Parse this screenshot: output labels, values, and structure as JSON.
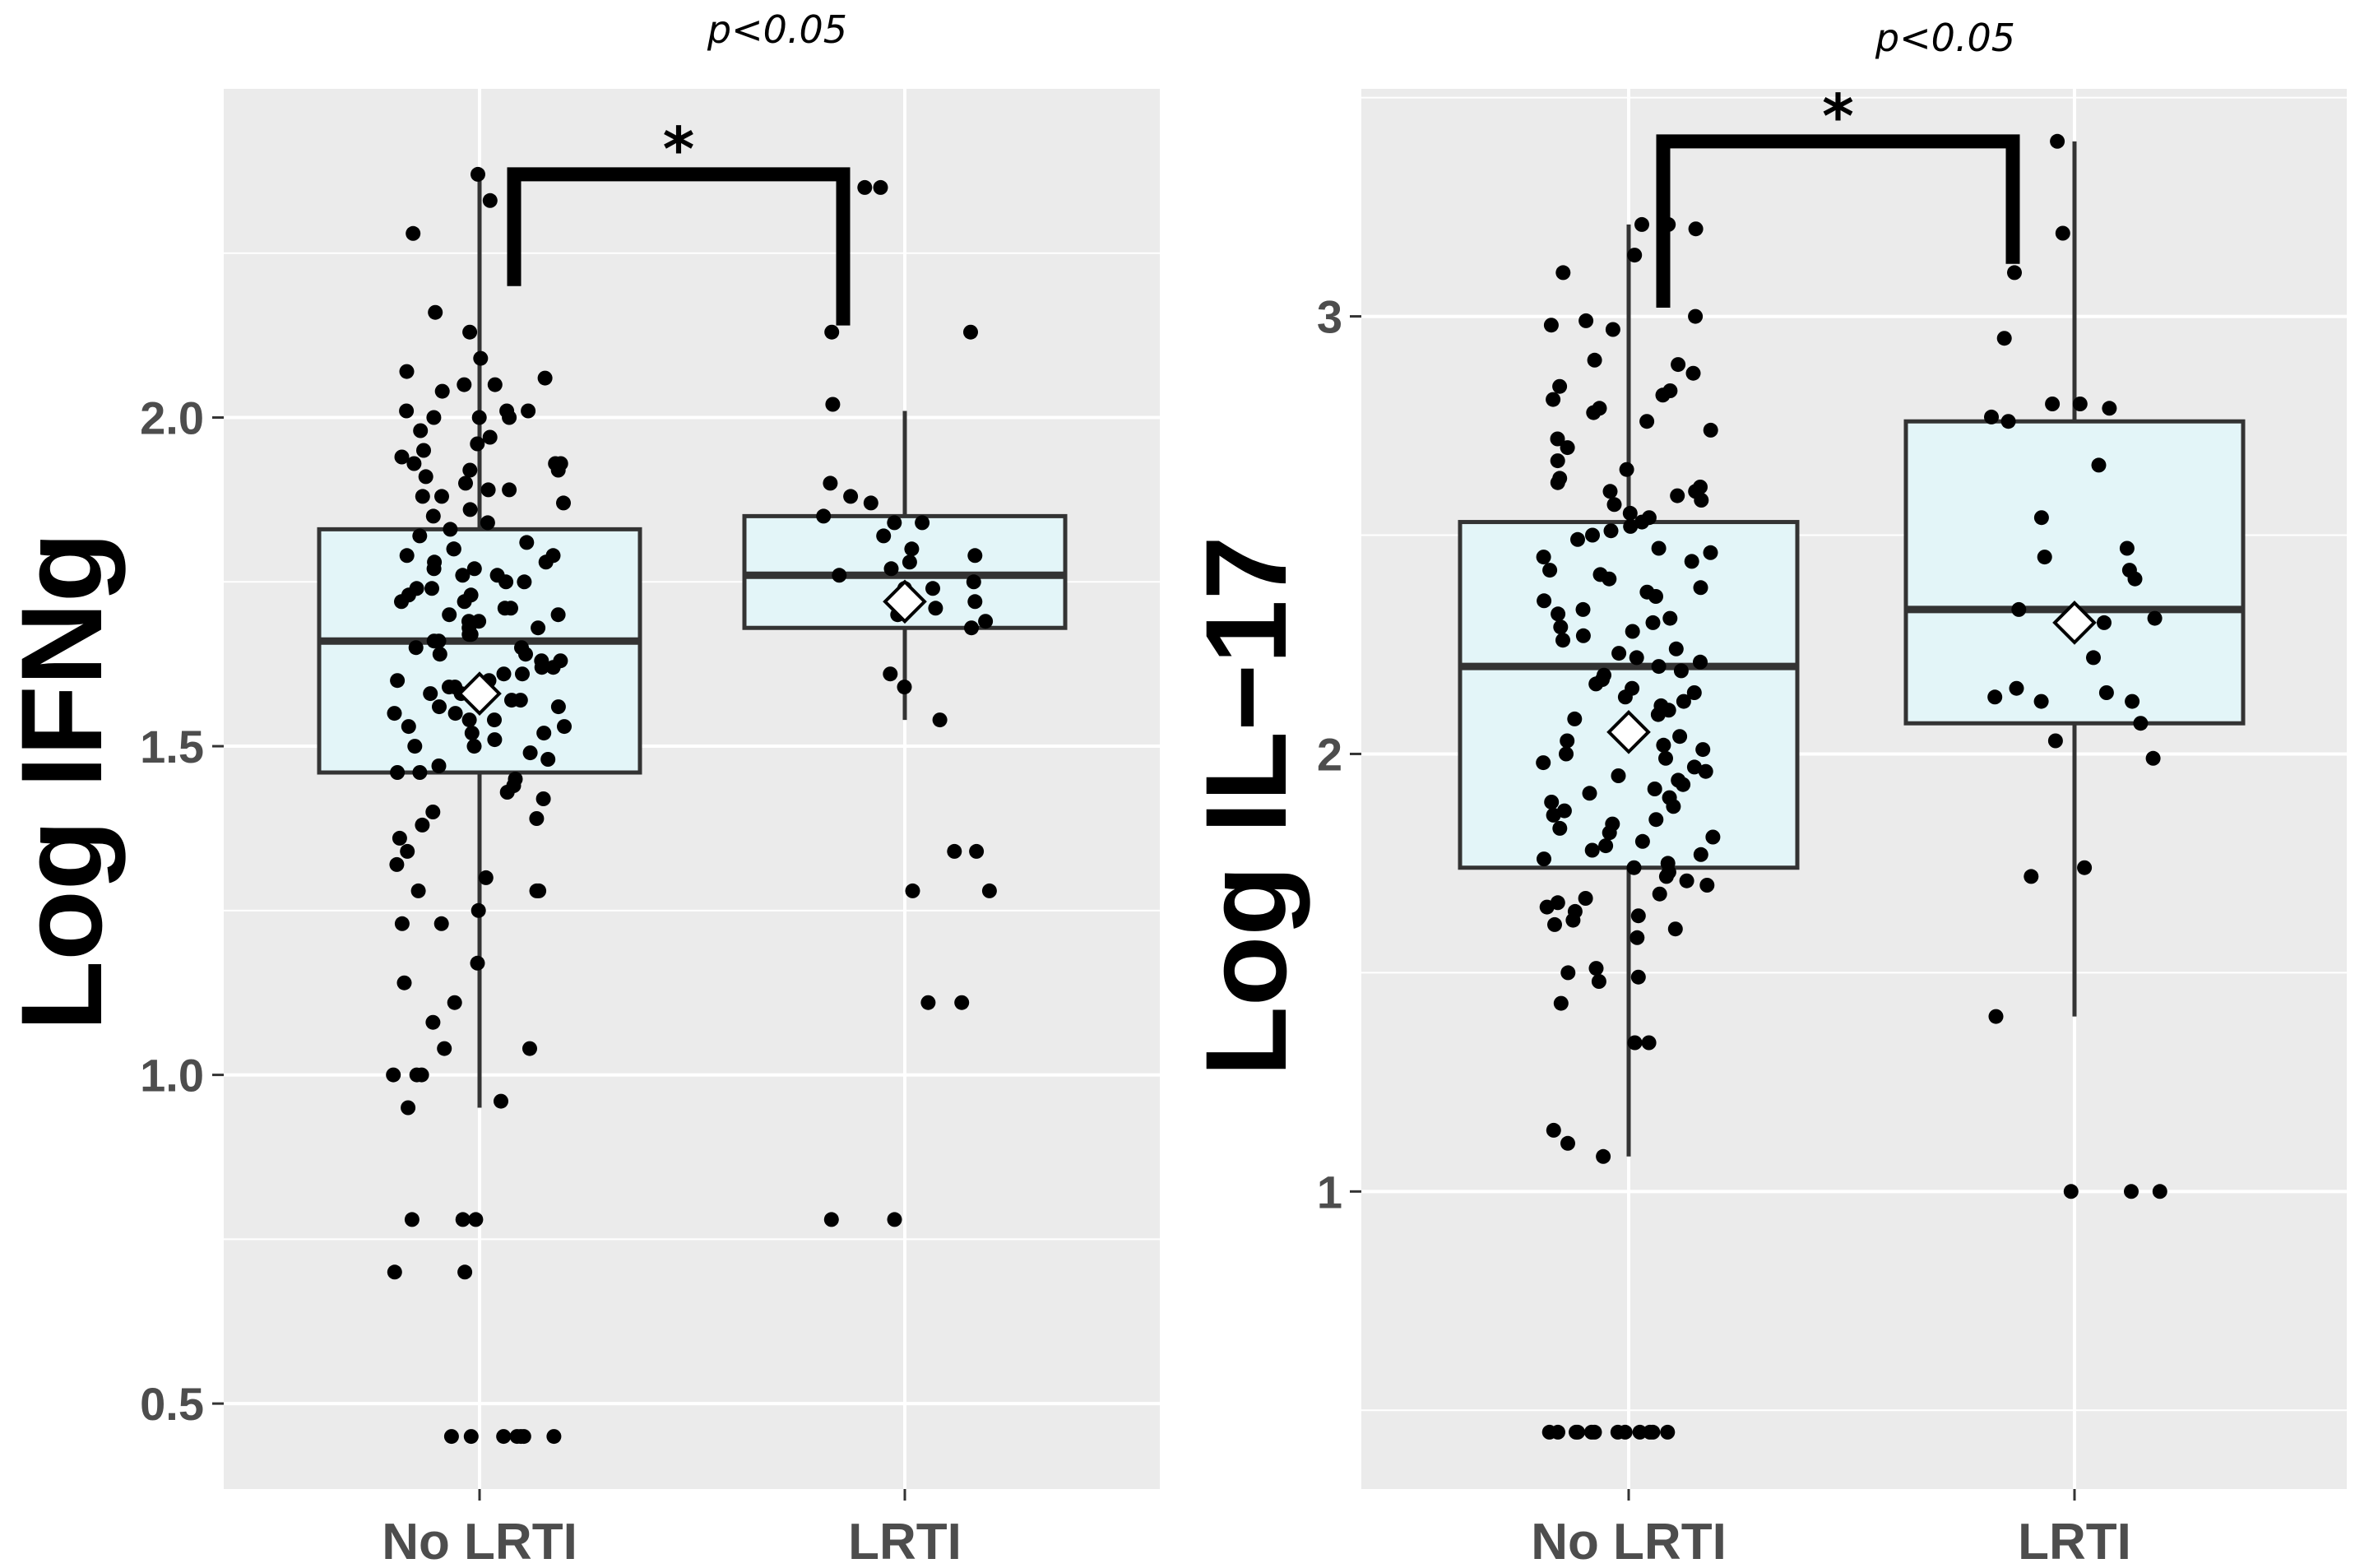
{
  "chart_data": [
    {
      "type": "box",
      "title": "p<0.05",
      "xlabel": "",
      "ylabel": "Log IFNg",
      "categories": [
        "No LRTI",
        "LRTI"
      ],
      "y_ticks": [
        0.5,
        1.0,
        1.5,
        2.0
      ],
      "y_tick_labels": [
        "0.5",
        "1.0",
        "1.5",
        "2.0"
      ],
      "ylim": [
        0.37,
        2.5
      ],
      "significance_label": "*",
      "colors": {
        "panel": "#ebebeb",
        "grid": "#ffffff",
        "box_fill": "#e3f5f8",
        "box_line": "#333333",
        "points": "#000000"
      },
      "boxes": [
        {
          "category": "No LRTI",
          "whisker_low": 0.95,
          "q1": 1.46,
          "median": 1.66,
          "q3": 1.83,
          "whisker_high": 2.36,
          "mean": 1.58
        },
        {
          "category": "LRTI",
          "whisker_low": 1.54,
          "q1": 1.68,
          "median": 1.76,
          "q3": 1.85,
          "whisker_high": 2.01,
          "mean": 1.72
        }
      ],
      "significance": {
        "from": "No LRTI",
        "to": "LRTI",
        "left_end": 2.2,
        "right_end": 2.14,
        "top": 2.37
      },
      "points": [
        {
          "category": "No LRTI",
          "values": [
            2.37,
            2.33,
            2.28,
            2.16,
            2.13,
            2.09,
            2.07,
            2.06,
            2.05,
            2.05,
            2.04,
            2.01,
            2.01,
            2.01,
            2.0,
            2.0,
            2.0,
            1.98,
            1.97,
            1.96,
            1.95,
            1.94,
            1.93,
            1.93,
            1.93,
            1.92,
            1.92,
            1.91,
            1.9,
            1.89,
            1.89,
            1.88,
            1.88,
            1.87,
            1.86,
            1.85,
            1.84,
            1.83,
            1.82,
            1.81,
            1.8,
            1.8,
            1.79,
            1.79,
            1.78,
            1.78,
            1.77,
            1.77,
            1.76,
            1.76,
            1.75,
            1.75,
            1.74,
            1.74,
            1.73,
            1.73,
            1.72,
            1.72,
            1.71,
            1.71,
            1.7,
            1.7,
            1.69,
            1.69,
            1.68,
            1.68,
            1.67,
            1.67,
            1.66,
            1.66,
            1.65,
            1.65,
            1.64,
            1.64,
            1.63,
            1.63,
            1.62,
            1.62,
            1.61,
            1.61,
            1.6,
            1.6,
            1.59,
            1.59,
            1.58,
            1.58,
            1.57,
            1.57,
            1.56,
            1.56,
            1.55,
            1.55,
            1.54,
            1.54,
            1.53,
            1.53,
            1.52,
            1.52,
            1.51,
            1.5,
            1.5,
            1.49,
            1.48,
            1.47,
            1.46,
            1.46,
            1.45,
            1.44,
            1.43,
            1.42,
            1.4,
            1.39,
            1.38,
            1.36,
            1.34,
            1.32,
            1.3,
            1.28,
            1.28,
            1.28,
            1.25,
            1.23,
            1.23,
            1.17,
            1.14,
            1.11,
            1.08,
            1.04,
            1.04,
            1.0,
            1.0,
            1.0,
            0.96,
            0.95,
            0.78,
            0.78,
            0.78,
            0.7,
            0.7,
            0.45,
            0.45,
            0.45,
            0.45,
            0.45,
            0.45,
            0.45
          ]
        },
        {
          "category": "LRTI",
          "values": [
            2.35,
            2.35,
            2.13,
            2.13,
            2.02,
            1.9,
            1.88,
            1.87,
            1.85,
            1.84,
            1.84,
            1.82,
            1.8,
            1.79,
            1.78,
            1.77,
            1.76,
            1.75,
            1.74,
            1.74,
            1.72,
            1.71,
            1.7,
            1.69,
            1.68,
            1.61,
            1.59,
            1.54,
            1.34,
            1.34,
            1.28,
            1.28,
            1.11,
            1.11,
            0.78,
            0.78
          ]
        }
      ]
    },
    {
      "type": "box",
      "title": "p<0.05",
      "xlabel": "",
      "ylabel": "Log IL−17",
      "categories": [
        "No LRTI",
        "LRTI"
      ],
      "y_ticks": [
        1,
        2,
        3
      ],
      "y_tick_labels": [
        "1",
        "2",
        "3"
      ],
      "ylim": [
        0.32,
        3.52
      ],
      "significance_label": "*",
      "colors": {
        "panel": "#ebebeb",
        "grid": "#ffffff",
        "box_fill": "#e3f5f8",
        "box_line": "#333333",
        "points": "#000000"
      },
      "boxes": [
        {
          "category": "No LRTI",
          "whisker_low": 1.08,
          "q1": 1.74,
          "median": 2.2,
          "q3": 2.53,
          "whisker_high": 3.21,
          "mean": 2.05
        },
        {
          "category": "LRTI",
          "whisker_low": 1.4,
          "q1": 2.07,
          "median": 2.33,
          "q3": 2.76,
          "whisker_high": 3.4,
          "mean": 2.3
        }
      ],
      "significance": {
        "from": "No LRTI",
        "to": "LRTI",
        "left_end": 3.02,
        "right_end": 3.12,
        "top": 3.4
      },
      "points": [
        {
          "category": "No LRTI",
          "values": [
            3.21,
            3.21,
            3.2,
            3.14,
            3.1,
            3.0,
            2.99,
            2.98,
            2.97,
            2.9,
            2.89,
            2.87,
            2.84,
            2.83,
            2.82,
            2.81,
            2.79,
            2.78,
            2.76,
            2.74,
            2.72,
            2.7,
            2.67,
            2.65,
            2.63,
            2.62,
            2.61,
            2.6,
            2.6,
            2.59,
            2.58,
            2.57,
            2.55,
            2.54,
            2.53,
            2.52,
            2.51,
            2.5,
            2.49,
            2.47,
            2.46,
            2.45,
            2.44,
            2.42,
            2.41,
            2.4,
            2.38,
            2.37,
            2.36,
            2.35,
            2.33,
            2.32,
            2.31,
            2.3,
            2.29,
            2.28,
            2.27,
            2.26,
            2.24,
            2.23,
            2.22,
            2.21,
            2.2,
            2.19,
            2.18,
            2.17,
            2.16,
            2.15,
            2.14,
            2.13,
            2.12,
            2.11,
            2.1,
            2.09,
            2.08,
            2.06,
            2.05,
            2.04,
            2.03,
            2.02,
            2.01,
            2.0,
            1.99,
            1.98,
            1.97,
            1.96,
            1.95,
            1.94,
            1.93,
            1.92,
            1.91,
            1.9,
            1.89,
            1.88,
            1.87,
            1.86,
            1.85,
            1.84,
            1.83,
            1.82,
            1.81,
            1.8,
            1.79,
            1.78,
            1.77,
            1.76,
            1.75,
            1.74,
            1.73,
            1.72,
            1.71,
            1.7,
            1.68,
            1.67,
            1.66,
            1.65,
            1.64,
            1.63,
            1.62,
            1.61,
            1.6,
            1.58,
            1.51,
            1.5,
            1.49,
            1.48,
            1.43,
            1.34,
            1.34,
            1.14,
            1.11,
            1.08,
            0.45,
            0.45,
            0.45,
            0.45,
            0.45,
            0.45,
            0.45,
            0.45,
            0.45,
            0.45,
            0.45,
            0.45
          ]
        },
        {
          "category": "LRTI",
          "values": [
            3.4,
            3.19,
            3.1,
            2.95,
            2.8,
            2.8,
            2.79,
            2.77,
            2.76,
            2.66,
            2.54,
            2.47,
            2.45,
            2.42,
            2.4,
            2.33,
            2.31,
            2.3,
            2.22,
            2.15,
            2.14,
            2.13,
            2.12,
            2.12,
            2.07,
            2.03,
            1.99,
            1.74,
            1.72,
            1.4,
            1.0,
            1.0,
            1.0
          ]
        }
      ]
    }
  ]
}
